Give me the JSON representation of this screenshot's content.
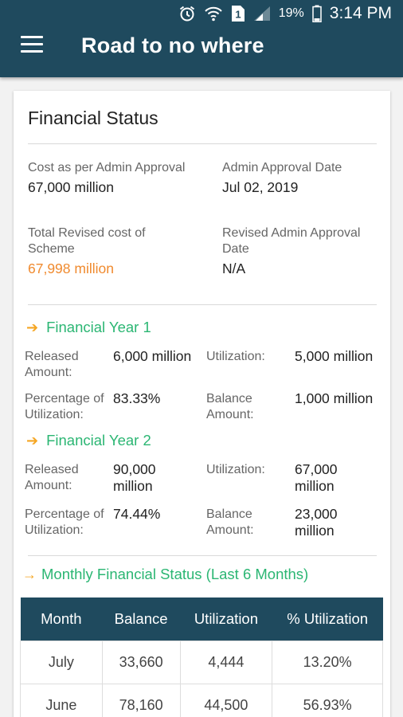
{
  "status_bar": {
    "icons": [
      "alarm-icon",
      "wifi-icon",
      "sim-icon",
      "signal-icon",
      "battery-icon"
    ],
    "sim_label": "1",
    "battery": "19%",
    "time": "3:14 PM"
  },
  "app_bar": {
    "menu_icon": "hamburger-menu-icon",
    "title": "Road to no where"
  },
  "financial_status": {
    "title": "Financial Status",
    "cost_admin_label": "Cost as per Admin Approval",
    "cost_admin_value": "67,000 million",
    "approval_date_label": "Admin Approval Date",
    "approval_date_value": "Jul 02, 2019",
    "revised_cost_label_line1": "Total Revised cost of",
    "revised_cost_label_line2": "Scheme",
    "revised_cost_value": "67,998 million",
    "revised_date_label_line1": "Revised Admin Approval",
    "revised_date_label_line2": "Date",
    "revised_date_value": "N/A",
    "accent_orange": "#f08a2e"
  },
  "financial_years": [
    {
      "title": "Financial Year 1",
      "released_label_1": "Released",
      "released_label_2": "Amount:",
      "released_value_1": "6,000 million",
      "released_value_2": "",
      "utilization_label": "Utilization:",
      "utilization_value_1": "5,000 million",
      "utilization_value_2": "",
      "percentage_label_1": "Percentage of",
      "percentage_label_2": "Utilization:",
      "percentage_value": "83.33%",
      "balance_label_1": "Balance",
      "balance_label_2": "Amount:",
      "balance_value_1": "1,000 million",
      "balance_value_2": ""
    },
    {
      "title": "Financial Year 2",
      "released_label_1": "Released",
      "released_label_2": "Amount:",
      "released_value_1": "90,000",
      "released_value_2": "million",
      "utilization_label": "Utilization:",
      "utilization_value_1": "67,000",
      "utilization_value_2": "million",
      "percentage_label_1": "Percentage of",
      "percentage_label_2": "Utilization:",
      "percentage_value": "74.44%",
      "balance_label_1": "Balance",
      "balance_label_2": "Amount:",
      "balance_value_1": "23,000",
      "balance_value_2": "million"
    }
  ],
  "monthly": {
    "arrow": "→",
    "title": "Monthly Financial Status (Last 6 Months)",
    "columns": [
      "Month",
      "Balance",
      "Utilization",
      "% Utilization"
    ],
    "rows": [
      [
        "July",
        "33,660",
        "4,444",
        "13.20%"
      ],
      [
        "June",
        "78,160",
        "44,500",
        "56.93%"
      ]
    ],
    "header_color": "#1f4a5e",
    "title_color": "#2bb673"
  }
}
